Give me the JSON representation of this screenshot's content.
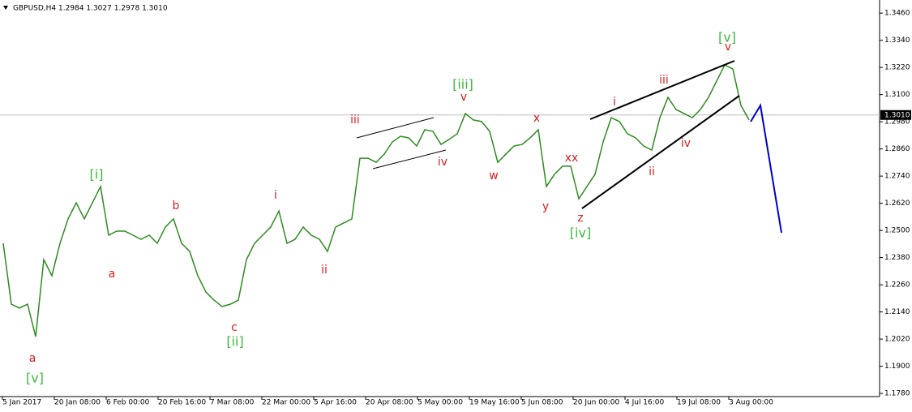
{
  "chart_data": {
    "type": "line",
    "title": "GBPUSD,H4 1.2984 1.3027 1.2978 1.3010",
    "series": [
      {
        "color": "#2e8b20",
        "values": [
          1.2443,
          1.2174,
          1.2157,
          1.2174,
          1.2031,
          1.2371,
          1.23,
          1.2443,
          1.2551,
          1.2622,
          1.2551,
          1.2622,
          1.2694,
          1.2479,
          1.2497,
          1.2497,
          1.2479,
          1.2461,
          1.2479,
          1.2443,
          1.2515,
          1.2551,
          1.2443,
          1.2407,
          1.23,
          1.2228,
          1.2192,
          1.2164,
          1.2174,
          1.2192,
          1.2371,
          1.2443,
          1.2479,
          1.2515,
          1.2586,
          1.2443,
          1.2461,
          1.2515,
          1.2479,
          1.2461,
          1.2407,
          1.2515,
          1.2533,
          1.2551,
          1.2819,
          1.2819,
          1.2801,
          1.2837,
          1.2891,
          1.2916,
          1.2909,
          1.2873,
          1.2945,
          1.2938,
          1.288,
          1.2902,
          1.2927,
          1.3016,
          1.2988,
          1.2981,
          1.2938,
          1.2801,
          1.2837,
          1.2873,
          1.288,
          1.2909,
          1.2945,
          1.2694,
          1.2748,
          1.2784,
          1.2784,
          1.264,
          1.2694,
          1.2748,
          1.2891,
          1.2998,
          1.2981,
          1.2927,
          1.2909,
          1.2873,
          1.2855,
          1.2998,
          1.3088,
          1.3034,
          1.3016,
          1.2998,
          1.3034,
          1.3088,
          1.316,
          1.3231,
          1.3213,
          1.3052,
          1.2988
        ]
      }
    ],
    "xticks": [
      "5 Jan 2017",
      "20 Jan 08:00",
      "6 Feb 00:00",
      "20 Feb 16:00",
      "7 Mar 08:00",
      "22 Mar 00:00",
      "5 Apr 16:00",
      "20 Apr 08:00",
      "5 May 00:00",
      "19 May 16:00",
      "5 Jun 08:00",
      "20 Jun 00:00",
      "4 Jul 16:00",
      "19 Jul 08:00",
      "3 Aug 00:00"
    ],
    "ylim": [
      1.1766,
      1.35
    ],
    "yticks": [
      {
        "value": 1.346,
        "label": "1.3460"
      },
      {
        "value": 1.334,
        "label": "1.3340"
      },
      {
        "value": 1.322,
        "label": "1.3220"
      },
      {
        "value": 1.31,
        "label": "1.3100"
      },
      {
        "value": 1.298,
        "label": "1.2980"
      },
      {
        "value": 1.286,
        "label": "1.2860"
      },
      {
        "value": 1.274,
        "label": "1.2740"
      },
      {
        "value": 1.262,
        "label": "1.2620"
      },
      {
        "value": 1.25,
        "label": "1.2500"
      },
      {
        "value": 1.238,
        "label": "1.2380"
      },
      {
        "value": 1.226,
        "label": "1.2260"
      },
      {
        "value": 1.214,
        "label": "1.2140"
      },
      {
        "value": 1.202,
        "label": "1.2020"
      },
      {
        "value": 1.19,
        "label": "1.1900"
      },
      {
        "value": 1.178,
        "label": "1.1780"
      }
    ],
    "current_price": {
      "value": 1.301,
      "label": "1.3010"
    },
    "annotations": [
      "[v]",
      "[i]",
      "[ii]",
      "[iii]",
      "[iv]",
      "[v]",
      "a",
      "a",
      "b",
      "c",
      "i",
      "ii",
      "iii",
      "iv",
      "v",
      "w",
      "x",
      "xx",
      "y",
      "z",
      "i",
      "ii",
      "iii",
      "iv",
      "v"
    ]
  }
}
